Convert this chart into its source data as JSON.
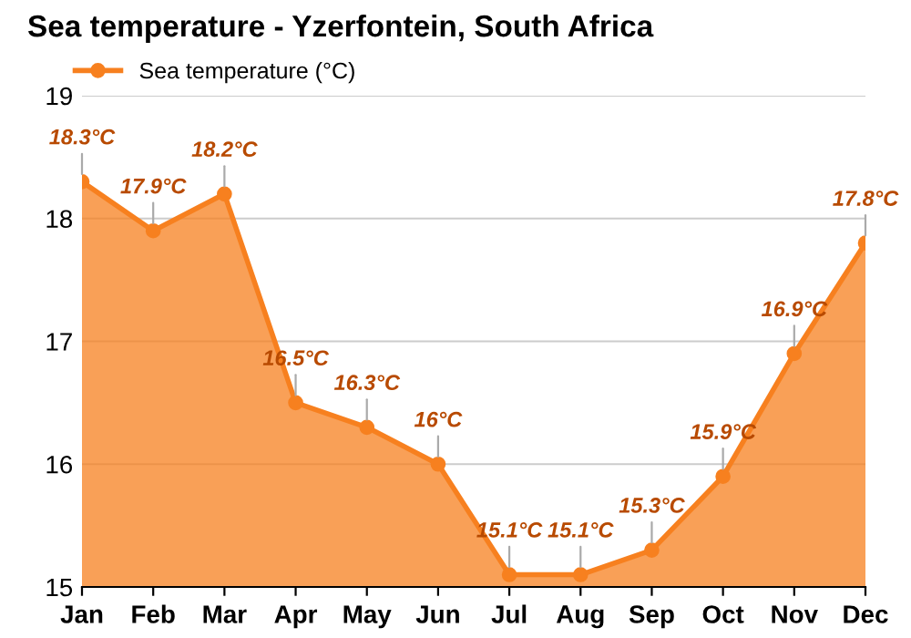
{
  "chart_data": {
    "type": "area",
    "title": "Sea temperature - Yzerfontein, South Africa",
    "categories": [
      "Jan",
      "Feb",
      "Mar",
      "Apr",
      "May",
      "Jun",
      "Jul",
      "Aug",
      "Sep",
      "Oct",
      "Nov",
      "Dec"
    ],
    "series": [
      {
        "name": "Sea temperature (°C)",
        "color": "#f7801f",
        "values": [
          18.3,
          17.9,
          18.2,
          16.5,
          16.3,
          16,
          15.1,
          15.1,
          15.3,
          15.9,
          16.9,
          17.8
        ],
        "value_labels": [
          "18.3°C",
          "17.9°C",
          "18.2°C",
          "16.5°C",
          "16.3°C",
          "16°C",
          "15.1°C",
          "15.1°C",
          "15.3°C",
          "15.9°C",
          "16.9°C",
          "17.8°C"
        ]
      }
    ],
    "ylim": [
      15,
      19
    ],
    "yticks": [
      15,
      16,
      17,
      18,
      19
    ],
    "grid": "y",
    "legend": "top left",
    "marker": "circle"
  }
}
